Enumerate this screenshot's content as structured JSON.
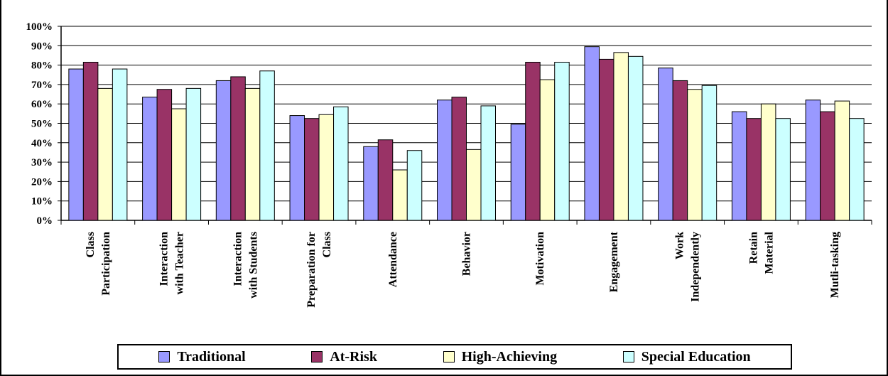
{
  "chart_data": {
    "type": "bar",
    "title": "",
    "xlabel": "",
    "ylabel": "",
    "ylim": [
      0,
      100
    ],
    "y_ticks": [
      "0%",
      "10%",
      "20%",
      "30%",
      "40%",
      "50%",
      "60%",
      "70%",
      "80%",
      "90%",
      "100%"
    ],
    "grid": true,
    "legend_position": "bottom",
    "categories": [
      [
        "Class",
        "Participation"
      ],
      [
        "Interaction",
        "with Teacher"
      ],
      [
        "Interaction",
        "with Students"
      ],
      [
        "Preparation for",
        "Class"
      ],
      [
        "Attendance"
      ],
      [
        "Behavior"
      ],
      [
        "Motivation"
      ],
      [
        "Engagement"
      ],
      [
        "Work",
        "Independently"
      ],
      [
        "Retain",
        "Material"
      ],
      [
        "Mutli-tasking"
      ]
    ],
    "series": [
      {
        "name": "Traditional",
        "color": "#9999ff",
        "values": [
          78,
          63.5,
          72,
          54,
          38,
          62,
          49.5,
          89.5,
          78.5,
          56,
          62
        ]
      },
      {
        "name": "At-Risk",
        "color": "#993366",
        "values": [
          81.5,
          67.5,
          74,
          52.5,
          41.5,
          63.5,
          81.5,
          83,
          72,
          52.5,
          56
        ]
      },
      {
        "name": "High-Achieving",
        "color": "#ffffcc",
        "values": [
          68,
          57.5,
          68,
          54.5,
          26,
          36.5,
          72.5,
          86.5,
          67.5,
          60,
          61.5
        ]
      },
      {
        "name": "Special Education",
        "color": "#ccffff",
        "values": [
          78,
          68,
          77,
          58.5,
          36,
          59,
          81.5,
          84.5,
          69.5,
          52.5,
          52.5
        ]
      }
    ]
  }
}
